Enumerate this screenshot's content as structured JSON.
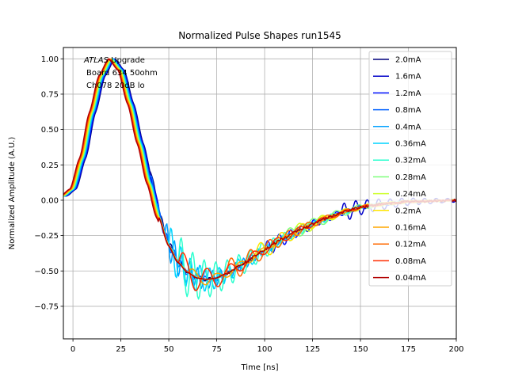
{
  "chart_data": {
    "type": "line",
    "title": "Normalized Pulse Shapes run1545",
    "xlabel": "Time [ns]",
    "ylabel": "Normalized Amplitude (A.U.)",
    "xlim": [
      -5,
      200
    ],
    "ylim": [
      -0.98,
      1.08
    ],
    "xticks": [
      0,
      25,
      50,
      75,
      100,
      125,
      150,
      175,
      200
    ],
    "xtick_labels": [
      "0",
      "25",
      "50",
      "75",
      "100",
      "125",
      "150",
      "175",
      "200"
    ],
    "yticks": [
      1.0,
      0.75,
      0.5,
      0.25,
      0.0,
      -0.25,
      -0.5,
      -0.75
    ],
    "ytick_labels": [
      "1.00",
      "0.75",
      "0.50",
      "0.25",
      "0.00",
      "−0.25",
      "−0.50",
      "−0.75"
    ],
    "grid": true,
    "legend_position": "top-right",
    "annotation": {
      "line1_italic": "ATLAS",
      "line1_rest": " Upgrade",
      "line2": "Board 634 50ohm",
      "line3": "Ch078 20dB lo"
    },
    "base_shape": {
      "description": "Common normalized pulse: rise from ~0.03 at -5 ns to peak 1.0 near 20 ns, undershoot to ~-0.56 near 68 ns, recovery to ~0 by 200 ns",
      "x": [
        -5,
        0,
        5,
        10,
        15,
        20,
        25,
        30,
        35,
        40,
        45,
        50,
        55,
        60,
        65,
        70,
        75,
        80,
        90,
        100,
        110,
        120,
        130,
        140,
        150,
        160,
        175,
        200
      ],
      "y": [
        0.03,
        0.08,
        0.3,
        0.62,
        0.88,
        1.0,
        0.92,
        0.68,
        0.4,
        0.12,
        -0.12,
        -0.32,
        -0.44,
        -0.51,
        -0.55,
        -0.56,
        -0.55,
        -0.52,
        -0.44,
        -0.35,
        -0.27,
        -0.2,
        -0.14,
        -0.09,
        -0.05,
        -0.03,
        -0.01,
        0.0
      ]
    },
    "series": [
      {
        "name": "2.0mA",
        "color": "#00007f",
        "ripple": {
          "start": 40,
          "amp": 0.03,
          "period": 5
        }
      },
      {
        "name": "1.6mA",
        "color": "#0000c8",
        "ripple": {
          "start": 140,
          "amp": 0.07,
          "period": 6
        }
      },
      {
        "name": "1.2mA",
        "color": "#0010ff",
        "ripple": {
          "start": 100,
          "amp": 0.06,
          "period": 6
        }
      },
      {
        "name": "0.8mA",
        "color": "#0060ff",
        "ripple": {
          "start": 40,
          "amp": 0.05,
          "period": 4
        }
      },
      {
        "name": "0.4mA",
        "color": "#00a0ff",
        "ripple": {
          "start": 48,
          "amp": 0.12,
          "period": 4
        }
      },
      {
        "name": "0.36mA",
        "color": "#00d4ff",
        "ripple": {
          "start": 50,
          "amp": 0.15,
          "period": 5
        }
      },
      {
        "name": "0.32mA",
        "color": "#2affce",
        "ripple": {
          "start": 55,
          "amp": 0.2,
          "period": 6
        }
      },
      {
        "name": "0.28mA",
        "color": "#7dff7a",
        "ripple": {
          "start": 110,
          "amp": 0.06,
          "period": 12
        }
      },
      {
        "name": "0.24mA",
        "color": "#ceff29",
        "ripple": {
          "start": 115,
          "amp": 0.05,
          "period": 12
        }
      },
      {
        "name": "0.2mA",
        "color": "#ffe500",
        "ripple": {
          "start": 95,
          "amp": 0.07,
          "period": 11
        }
      },
      {
        "name": "0.16mA",
        "color": "#ffa700",
        "ripple": {
          "start": 60,
          "amp": 0.05,
          "period": 12
        }
      },
      {
        "name": "0.12mA",
        "color": "#ff6800",
        "ripple": {
          "start": 80,
          "amp": 0.1,
          "period": 10
        }
      },
      {
        "name": "0.08mA",
        "color": "#ff2d00",
        "ripple": {
          "start": 55,
          "amp": 0.12,
          "period": 12
        }
      },
      {
        "name": "0.04mA",
        "color": "#b20000",
        "ripple": {
          "start": 200,
          "amp": 0.0,
          "period": 10
        }
      }
    ]
  }
}
